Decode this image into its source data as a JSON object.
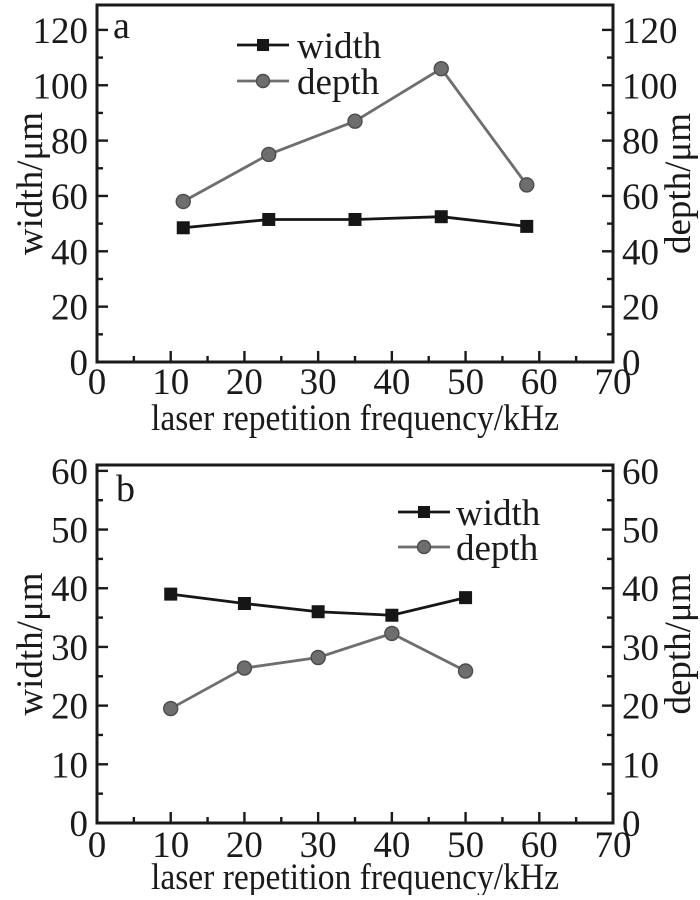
{
  "figure": {
    "kind": "two-panel scientific line chart",
    "background": "#ffffff",
    "text_color": "#1a1a1a",
    "frame_color": "#1a1a1a"
  },
  "chart_data": [
    {
      "type": "line",
      "panel_label": "a",
      "x": [
        11.7,
        23.3,
        35,
        46.7,
        58.3
      ],
      "series": [
        {
          "name": "width",
          "marker": "square",
          "color": "#161616",
          "values": [
            48.5,
            51.5,
            51.5,
            52.5,
            49
          ]
        },
        {
          "name": "depth",
          "marker": "circle",
          "color": "#6e6e6e",
          "values": [
            58,
            75,
            87,
            106,
            64
          ]
        }
      ],
      "xlabel": "laser repetition frequency/kHz",
      "ylabel_left": "width/μm",
      "ylabel_right": "depth/μm",
      "xlim": [
        0,
        70
      ],
      "ylim": [
        0,
        129
      ],
      "x_major_ticks": [
        0,
        10,
        20,
        30,
        40,
        50,
        60,
        70
      ],
      "y_major_ticks": [
        0,
        20,
        40,
        60,
        80,
        100,
        120
      ],
      "x_minor_step": 5,
      "y_minor_step": 10,
      "grid": false,
      "legend_entries": [
        "width",
        "depth"
      ],
      "legend_position": "inside top-center"
    },
    {
      "type": "line",
      "panel_label": "b",
      "x": [
        10,
        20,
        30,
        40,
        50
      ],
      "series": [
        {
          "name": "width",
          "marker": "square",
          "color": "#161616",
          "values": [
            39,
            37.4,
            36,
            35.4,
            38.4
          ]
        },
        {
          "name": "depth",
          "marker": "circle",
          "color": "#6e6e6e",
          "values": [
            19.5,
            26.4,
            28.2,
            32.3,
            25.9
          ]
        }
      ],
      "xlabel": "laser repetition frequency/kHz",
      "ylabel_left": "width/μm",
      "ylabel_right": "depth/μm",
      "xlim": [
        0,
        70
      ],
      "ylim": [
        0,
        61
      ],
      "x_major_ticks": [
        0,
        10,
        20,
        30,
        40,
        50,
        60,
        70
      ],
      "y_major_ticks": [
        0,
        10,
        20,
        30,
        40,
        50,
        60
      ],
      "x_minor_step": 5,
      "y_minor_step": 5,
      "grid": false,
      "legend_entries": [
        "width",
        "depth"
      ],
      "legend_position": "inside upper-right"
    }
  ]
}
